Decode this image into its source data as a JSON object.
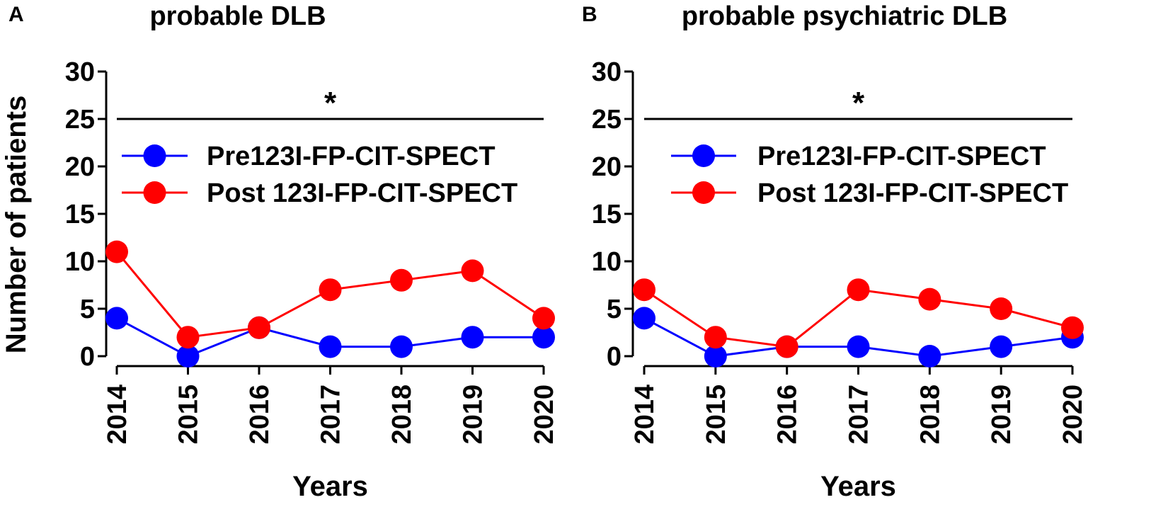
{
  "figure": {
    "shared": {
      "xlabel": "Years",
      "ylabel": "Number of patients",
      "x_ticks": [
        "2014",
        "2015",
        "2016",
        "2017",
        "2018",
        "2019",
        "2020"
      ],
      "y_ticks": [
        "0",
        "5",
        "10",
        "15",
        "20",
        "25",
        "30"
      ]
    }
  },
  "chart_data": [
    {
      "type": "line",
      "panel_label": "A",
      "title": "probable DLB",
      "xlabel": "Years",
      "ylabel": "Number of patients",
      "x": [
        "2014",
        "2015",
        "2016",
        "2017",
        "2018",
        "2019",
        "2020"
      ],
      "ylim": [
        0,
        30
      ],
      "yticks": [
        0,
        5,
        10,
        15,
        20,
        25,
        30
      ],
      "significance": {
        "marker": "*",
        "bar_y": 25
      },
      "legend_position": "top-center",
      "series": [
        {
          "name": "Pre123I-FP-CIT-SPECT",
          "color": "#0000ff",
          "values": [
            4,
            0,
            3,
            1,
            1,
            2,
            2
          ]
        },
        {
          "name": "Post 123I-FP-CIT-SPECT",
          "color": "#ff0000",
          "values": [
            11,
            2,
            3,
            7,
            8,
            9,
            4
          ]
        }
      ]
    },
    {
      "type": "line",
      "panel_label": "B",
      "title": "probable psychiatric DLB",
      "xlabel": "Years",
      "ylabel": "",
      "x": [
        "2014",
        "2015",
        "2016",
        "2017",
        "2018",
        "2019",
        "2020"
      ],
      "ylim": [
        0,
        30
      ],
      "yticks": [
        0,
        5,
        10,
        15,
        20,
        25,
        30
      ],
      "significance": {
        "marker": "*",
        "bar_y": 25
      },
      "legend_position": "top-center",
      "series": [
        {
          "name": "Pre123I-FP-CIT-SPECT",
          "color": "#0000ff",
          "values": [
            4,
            0,
            1,
            1,
            0,
            1,
            2
          ]
        },
        {
          "name": "Post 123I-FP-CIT-SPECT",
          "color": "#ff0000",
          "values": [
            7,
            2,
            1,
            7,
            6,
            5,
            3
          ]
        }
      ]
    }
  ]
}
